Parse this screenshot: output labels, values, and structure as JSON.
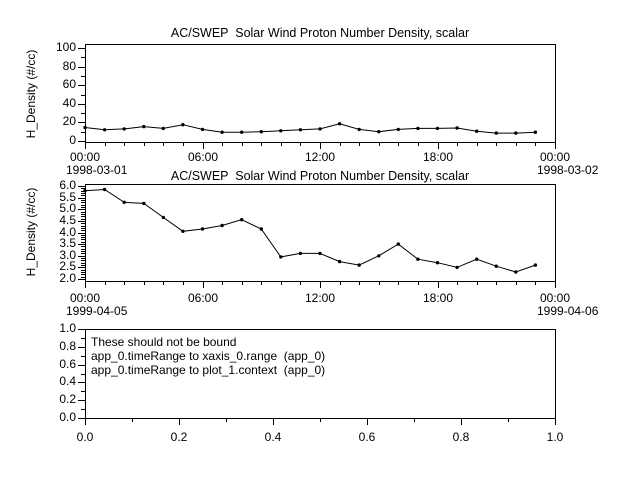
{
  "app": {
    "background": "#ffffff",
    "foreground": "#000000"
  },
  "chart_data": [
    {
      "type": "line",
      "title": "AC/SWEP  Solar Wind Proton Number Density, scalar",
      "ylabel": "H_Density (#/cc)",
      "xlabel": "",
      "legend": null,
      "grid": false,
      "marker": "filled-dot",
      "x_hours": [
        0,
        1,
        2,
        3,
        4,
        5,
        6,
        7,
        8,
        9,
        10,
        11,
        12,
        13,
        14,
        15,
        16,
        17,
        18,
        19,
        20,
        21,
        22,
        23
      ],
      "values": [
        14.5,
        12,
        13,
        15.5,
        13.5,
        17.5,
        12.5,
        9.5,
        9.5,
        10,
        11,
        12,
        13,
        18.5,
        12.5,
        10,
        12.5,
        13.5,
        13.5,
        14,
        10.5,
        8.5,
        8.5,
        9.5
      ],
      "ylim": [
        0,
        100
      ],
      "yticks": [
        0,
        20,
        40,
        60,
        80,
        100
      ],
      "ytick_labels": [
        "0",
        "20",
        "40",
        "60",
        "80",
        "100"
      ],
      "y_minor_step": 10,
      "xlim": [
        0,
        24
      ],
      "xticks": [
        0,
        6,
        12,
        18,
        24
      ],
      "xtick_labels": [
        "00:00",
        "06:00",
        "12:00",
        "18:00",
        "00:00"
      ],
      "x_minor_step": 1,
      "date_left": "1998-03-01",
      "date_right": "1998-03-02"
    },
    {
      "type": "line",
      "title": "AC/SWEP  Solar Wind Proton Number Density, scalar",
      "ylabel": "H_Density (#/cc)",
      "xlabel": "",
      "legend": null,
      "grid": false,
      "marker": "filled-dot",
      "x_hours": [
        0,
        1,
        2,
        3,
        4,
        5,
        6,
        7,
        8,
        9,
        10,
        11,
        12,
        13,
        14,
        15,
        16,
        17,
        18,
        19,
        20,
        21,
        22,
        23
      ],
      "values": [
        5.8,
        5.85,
        5.3,
        5.25,
        4.65,
        4.05,
        4.15,
        4.3,
        4.55,
        4.15,
        2.95,
        3.1,
        3.1,
        2.75,
        2.6,
        3.0,
        3.5,
        2.85,
        2.7,
        2.5,
        2.85,
        2.55,
        2.3,
        2.6
      ],
      "ylim": [
        2,
        6
      ],
      "yticks": [
        2,
        2.5,
        3,
        3.5,
        4,
        4.5,
        5,
        5.5,
        6
      ],
      "ytick_labels": [
        "2.0",
        "2.5",
        "3.0",
        "3.5",
        "4.0",
        "4.5",
        "5.0",
        "5.5",
        "6.0"
      ],
      "y_minor_step": 0.1,
      "xlim": [
        0,
        24
      ],
      "xticks": [
        0,
        6,
        12,
        18,
        24
      ],
      "xtick_labels": [
        "00:00",
        "06:00",
        "12:00",
        "18:00",
        "00:00"
      ],
      "x_minor_step": 1,
      "date_left": "1999-04-05",
      "date_right": "1999-04-06"
    },
    {
      "type": "empty",
      "title": "",
      "ylabel": "",
      "xlabel": "",
      "legend": null,
      "grid": false,
      "annotation_lines": [
        "These should not be bound",
        "app_0.timeRange to xaxis_0.range  (app_0)",
        "app_0.timeRange to plot_1.context  (app_0)"
      ],
      "ylim": [
        0,
        1
      ],
      "yticks": [
        0,
        0.2,
        0.4,
        0.6,
        0.8,
        1
      ],
      "ytick_labels": [
        "0.0",
        "0.2",
        "0.4",
        "0.6",
        "0.8",
        "1.0"
      ],
      "y_minor_step": 0.1,
      "xlim": [
        0,
        1
      ],
      "xticks": [
        0,
        0.2,
        0.4,
        0.6,
        0.8,
        1
      ],
      "xtick_labels": [
        "0.0",
        "0.2",
        "0.4",
        "0.6",
        "0.8",
        "1.0"
      ],
      "x_minor_step": 0.1
    }
  ]
}
